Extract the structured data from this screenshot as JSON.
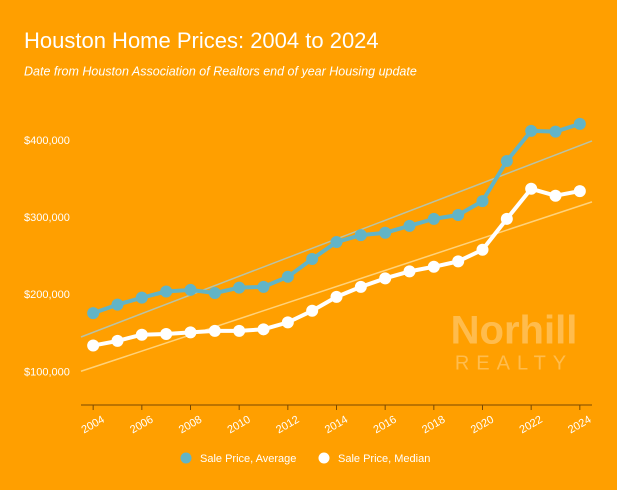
{
  "chart_data": {
    "type": "line",
    "title": "Houston Home Prices: 2004 to 2024",
    "subtitle": "Date from Houston Association of Realtors end of year Housing update",
    "watermark": [
      "Norhill",
      "REALTY"
    ],
    "x": [
      2004,
      2005,
      2006,
      2007,
      2008,
      2009,
      2010,
      2011,
      2012,
      2013,
      2014,
      2015,
      2016,
      2017,
      2018,
      2019,
      2020,
      2021,
      2022,
      2023,
      2024
    ],
    "series": [
      {
        "name": "Sale Price, Average",
        "color": "#62b4c6",
        "trend_color": "#b9c3a6",
        "values": [
          177000,
          188000,
          197000,
          205000,
          207000,
          203000,
          210000,
          211000,
          224000,
          247000,
          269000,
          278000,
          281000,
          290000,
          299000,
          304000,
          322000,
          374000,
          413000,
          412000,
          422000
        ]
      },
      {
        "name": "Sale Price, Median",
        "color": "#ffffff",
        "trend_color": "#ffd27a",
        "values": [
          135000,
          141000,
          149000,
          150000,
          152000,
          154000,
          154000,
          156000,
          165000,
          180000,
          198000,
          211000,
          222000,
          231000,
          237000,
          244000,
          259000,
          299000,
          338000,
          329000,
          335000
        ]
      }
    ],
    "trendline": true,
    "xlim": [
      2003.5,
      2024.5
    ],
    "xticks": [
      2004,
      2006,
      2008,
      2010,
      2012,
      2014,
      2016,
      2018,
      2020,
      2022,
      2024
    ],
    "ylim": [
      58000,
      440000
    ],
    "yticks": [
      {
        "value": 100000,
        "label": "$100,000"
      },
      {
        "value": 200000,
        "label": "$200,000"
      },
      {
        "value": 300000,
        "label": "$300,000"
      },
      {
        "value": 400000,
        "label": "$400,000"
      }
    ],
    "grid": false,
    "legend": "bottom"
  }
}
